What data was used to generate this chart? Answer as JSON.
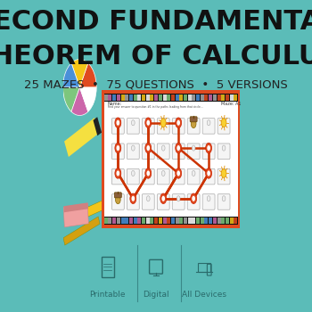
{
  "bg_color": "#5bbcb8",
  "title_line1": "SECOND FUNDAMENTAL",
  "title_line2": "THEOREM OF CALCULUS",
  "subtitle": "25 MAZES  •  75 QUESTIONS  •  5 VERSIONS",
  "title_color": "#111111",
  "subtitle_color": "#222222",
  "title_fontsize": 22,
  "subtitle_fontsize": 9.5,
  "worksheet_border_color": "#e04a1f",
  "worksheet_bg": "#ffffff",
  "maze_path_color": "#cc3300",
  "bottom_labels": [
    "Printable",
    "Digital",
    "All Devices"
  ],
  "bottom_label_color": "#2a6b6b",
  "bottom_icon_color": "#2a6b6b",
  "ball_colors": [
    "#e04a1f",
    "#f5c518",
    "#4a90d9",
    "#7dc67d",
    "#cc66aa",
    "#ffffff"
  ],
  "strip_colors": [
    "#e04a1f",
    "#f5c518",
    "#4a90d9",
    "#7dc67d",
    "#cc66aa",
    "#ffffff",
    "#aaaaaa"
  ]
}
